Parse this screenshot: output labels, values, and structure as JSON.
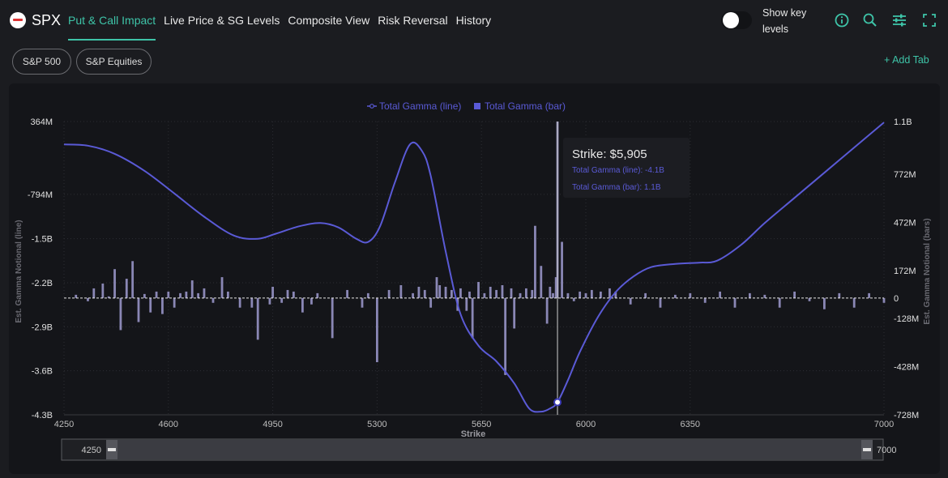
{
  "header": {
    "symbol": "SPX",
    "tabs": [
      {
        "label": "Put & Call Impact"
      },
      {
        "label": "Live Price & SG Levels"
      },
      {
        "label": "Composite View"
      },
      {
        "label": "Risk Reversal"
      },
      {
        "label": "History"
      }
    ],
    "toggle_label": "Show key levels",
    "icons": [
      "info-icon",
      "search-icon",
      "sliders-icon",
      "fullscreen-icon"
    ]
  },
  "filters": {
    "pills": [
      {
        "label": "S&P 500"
      },
      {
        "label": "S&P Equities"
      }
    ],
    "add_tab": "+ Add Tab"
  },
  "colors": {
    "accent": "#3ec4a8",
    "line": "#5a5ad6",
    "bar": "#8a87b5"
  },
  "tooltip": {
    "title": "Strike: $5,905",
    "line": "Total Gamma (line): -4.1B",
    "bar": "Total Gamma (bar): 1.1B"
  },
  "range_slider": {
    "start": "4250",
    "end": "7000"
  },
  "chart_data": {
    "type": "line",
    "legend": [
      "Total Gamma (line)",
      "Total Gamma (bar)"
    ],
    "legend_position": "top-center",
    "xlabel": "Strike",
    "ylabel_left": "Est. Gamma Notional (line)",
    "ylabel_right": "Est. Gamma Notional (bars)",
    "xlim": [
      4250,
      7000
    ],
    "x_ticks": [
      "4250",
      "4600",
      "4950",
      "5300",
      "5650",
      "6000",
      "6350",
      "7000"
    ],
    "x_tick_values": [
      4250,
      4600,
      4950,
      5300,
      5650,
      6000,
      6350,
      7000
    ],
    "y_left_ticks": [
      "364M",
      "-794M",
      "-1.5B",
      "-2.2B",
      "-2.9B",
      "-3.6B",
      "-4.3B"
    ],
    "y_left_values": [
      0.364,
      -0.794,
      -1.5,
      -2.2,
      -2.9,
      -3.6,
      -4.3
    ],
    "y_right_ticks": [
      "1.1B",
      "772M",
      "472M",
      "172M",
      "0",
      "-128M",
      "-428M",
      "-728M"
    ],
    "y_right_values": [
      1100,
      772,
      472,
      172,
      0,
      -128,
      -428,
      -728
    ],
    "line_series": {
      "name": "Total Gamma (line)",
      "x": [
        4250,
        4330,
        4420,
        4520,
        4620,
        4720,
        4820,
        4900,
        4960,
        5040,
        5110,
        5170,
        5230,
        5270,
        5310,
        5360,
        5410,
        5450,
        5480,
        5530,
        5580,
        5640,
        5700,
        5760,
        5810,
        5850,
        5880,
        5905,
        5940,
        5980,
        6040,
        6100,
        6160,
        6220,
        6300,
        6380,
        6440,
        6520,
        6600,
        6700,
        6800,
        6900,
        7000
      ],
      "y": [
        0.0,
        -0.02,
        -0.15,
        -0.42,
        -0.78,
        -1.15,
        -1.45,
        -1.5,
        -1.42,
        -1.3,
        -1.25,
        -1.32,
        -1.5,
        -1.55,
        -1.3,
        -0.6,
        0.0,
        -0.1,
        -0.5,
        -1.7,
        -2.7,
        -3.2,
        -3.45,
        -3.8,
        -4.2,
        -4.25,
        -4.2,
        -4.1,
        -3.75,
        -3.3,
        -2.75,
        -2.35,
        -2.1,
        -1.95,
        -1.9,
        -1.88,
        -1.85,
        -1.6,
        -1.25,
        -0.85,
        -0.45,
        -0.05,
        0.35
      ],
      "y_unit": "B",
      "highlight": {
        "x": 5905,
        "y": -4.1
      }
    },
    "bar_series": {
      "name": "Total Gamma (bar)",
      "y_unit": "M",
      "x": [
        4290,
        4330,
        4350,
        4380,
        4400,
        4420,
        4440,
        4460,
        4480,
        4500,
        4520,
        4540,
        4560,
        4580,
        4600,
        4620,
        4640,
        4660,
        4680,
        4700,
        4720,
        4750,
        4780,
        4800,
        4840,
        4880,
        4900,
        4940,
        4950,
        4980,
        5000,
        5020,
        5050,
        5080,
        5100,
        5150,
        5200,
        5250,
        5270,
        5300,
        5340,
        5380,
        5420,
        5440,
        5460,
        5480,
        5500,
        5510,
        5530,
        5550,
        5570,
        5580,
        5600,
        5610,
        5620,
        5640,
        5660,
        5680,
        5700,
        5720,
        5730,
        5750,
        5760,
        5780,
        5800,
        5820,
        5830,
        5850,
        5870,
        5880,
        5890,
        5900,
        5905,
        5920,
        5940,
        5960,
        5980,
        6000,
        6020,
        6050,
        6080,
        6100,
        6150,
        6200,
        6250,
        6300,
        6350,
        6400,
        6450,
        6500,
        6550,
        6600,
        6650,
        6700,
        6750,
        6800,
        6850,
        6900,
        6950,
        7000
      ],
      "values": [
        20,
        -20,
        60,
        90,
        10,
        180,
        -200,
        120,
        230,
        -150,
        25,
        -90,
        40,
        -100,
        40,
        -60,
        30,
        40,
        110,
        30,
        60,
        -30,
        130,
        40,
        -60,
        -60,
        -260,
        -40,
        70,
        -30,
        50,
        40,
        -90,
        -40,
        30,
        -250,
        50,
        -60,
        30,
        -400,
        50,
        80,
        30,
        70,
        50,
        -60,
        130,
        80,
        70,
        50,
        -80,
        60,
        -80,
        40,
        -250,
        100,
        30,
        70,
        50,
        80,
        -480,
        60,
        -190,
        30,
        60,
        50,
        450,
        200,
        -160,
        70,
        30,
        130,
        1100,
        350,
        30,
        -20,
        40,
        30,
        50,
        40,
        60,
        40,
        -40,
        30,
        -60,
        20,
        30,
        -30,
        40,
        -60,
        30,
        20,
        -60,
        40,
        -20,
        -70,
        30,
        -60,
        30,
        -30
      ]
    }
  }
}
